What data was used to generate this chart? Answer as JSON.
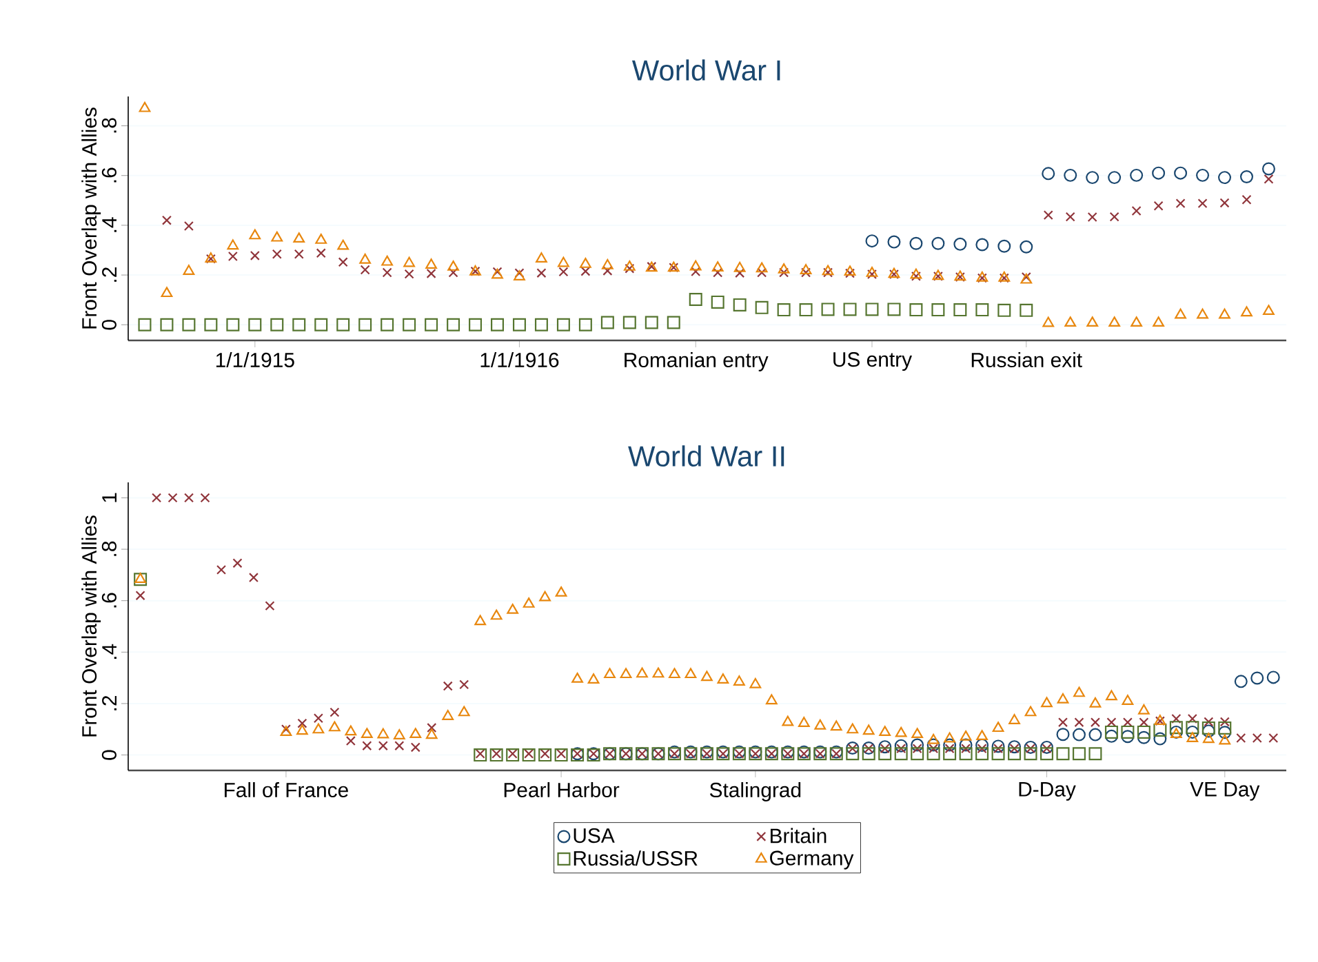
{
  "chart_data": [
    {
      "type": "scatter",
      "title": "World War I",
      "ylabel": "Front Overlap with Allies",
      "grid": "y",
      "legend": false,
      "categories": [
        null,
        null,
        null,
        null,
        null,
        "1/1/1915",
        null,
        null,
        null,
        null,
        null,
        null,
        null,
        null,
        null,
        null,
        null,
        "1/1/1916",
        null,
        null,
        null,
        null,
        null,
        null,
        null,
        "Romanian entry",
        null,
        null,
        null,
        null,
        null,
        null,
        null,
        "US entry",
        null,
        null,
        null,
        null,
        null,
        null,
        "Russian exit",
        null,
        null,
        null,
        null,
        null,
        null,
        null,
        null,
        null,
        null,
        null
      ],
      "ylim": [
        -0.063,
        0.918
      ],
      "yticks": [
        {
          "value": 0,
          "label": "0"
        },
        {
          "value": 0.2,
          "label": ".2"
        },
        {
          "value": 0.4,
          "label": ".4"
        },
        {
          "value": 0.6,
          "label": ".6"
        },
        {
          "value": 0.8,
          "label": ".8"
        }
      ],
      "series": [
        {
          "color": "#1a476f",
          "marker": "circle",
          "values": [
            null,
            null,
            null,
            null,
            null,
            null,
            null,
            null,
            null,
            null,
            null,
            null,
            null,
            null,
            null,
            null,
            null,
            null,
            null,
            null,
            null,
            null,
            null,
            null,
            null,
            null,
            null,
            null,
            null,
            null,
            null,
            null,
            null,
            0.337,
            0.333,
            0.327,
            0.327,
            0.324,
            0.322,
            0.316,
            0.313,
            0.608,
            0.601,
            0.592,
            0.592,
            0.601,
            0.61,
            0.61,
            0.601,
            0.592,
            0.595,
            0.627
          ]
        },
        {
          "color": "#90353b",
          "marker": "cross",
          "values": [
            null,
            0.42,
            0.397,
            0.265,
            0.275,
            0.278,
            0.284,
            0.284,
            0.288,
            0.252,
            0.221,
            0.21,
            0.204,
            0.206,
            0.21,
            0.215,
            0.213,
            0.208,
            0.208,
            0.213,
            0.215,
            0.217,
            0.226,
            0.234,
            0.23,
            0.214,
            0.21,
            0.208,
            0.21,
            0.21,
            0.21,
            0.21,
            0.207,
            0.203,
            0.203,
            0.195,
            0.195,
            0.192,
            0.188,
            0.188,
            0.192,
            0.441,
            0.434,
            0.433,
            0.434,
            0.458,
            0.478,
            0.488,
            0.488,
            0.49,
            0.503,
            0.586
          ]
        },
        {
          "color": "#55752f",
          "marker": "square",
          "values": [
            0,
            0,
            0,
            0,
            0,
            0,
            0,
            0,
            0,
            0,
            0,
            0,
            0,
            0,
            0,
            0,
            0,
            0,
            0,
            0,
            0,
            0.009,
            0.009,
            0.009,
            0.009,
            0.102,
            0.091,
            0.08,
            0.069,
            0.06,
            0.06,
            0.062,
            0.062,
            0.062,
            0.062,
            0.06,
            0.06,
            0.06,
            0.06,
            0.058,
            0.058,
            null,
            null,
            null,
            null,
            null,
            null,
            null,
            null,
            null,
            null,
            null
          ]
        },
        {
          "color": "#e8870e",
          "marker": "triangle",
          "values": [
            0.87,
            0.126,
            0.215,
            0.265,
            0.317,
            0.358,
            0.349,
            0.345,
            0.34,
            0.316,
            0.26,
            0.252,
            0.247,
            0.24,
            0.232,
            0.213,
            0.2,
            0.193,
            0.265,
            0.247,
            0.243,
            0.238,
            0.232,
            0.228,
            0.228,
            0.233,
            0.229,
            0.227,
            0.225,
            0.221,
            0.218,
            0.214,
            0.212,
            0.207,
            0.203,
            0.2,
            0.195,
            0.192,
            0.188,
            0.188,
            0.18,
            0.006,
            0.007,
            0.007,
            0.007,
            0.007,
            0.007,
            0.039,
            0.039,
            0.039,
            0.048,
            0.054
          ]
        }
      ]
    },
    {
      "type": "scatter",
      "title": "World War II",
      "ylabel": "Front Overlap with Allies",
      "grid": "y",
      "legend": "bottom",
      "categories": [
        null,
        null,
        null,
        null,
        null,
        null,
        null,
        null,
        null,
        "Fall of France",
        null,
        null,
        null,
        null,
        null,
        null,
        null,
        null,
        null,
        null,
        null,
        null,
        null,
        null,
        null,
        null,
        "Pearl Harbor",
        null,
        null,
        null,
        null,
        null,
        null,
        null,
        null,
        null,
        null,
        null,
        "Stalingrad",
        null,
        null,
        null,
        null,
        null,
        null,
        null,
        null,
        null,
        null,
        null,
        null,
        null,
        null,
        null,
        null,
        null,
        "D-Day",
        null,
        null,
        null,
        null,
        null,
        null,
        null,
        null,
        null,
        null,
        "VE Day",
        null,
        null,
        null
      ],
      "ylim": [
        -0.06,
        1.06
      ],
      "yticks": [
        {
          "value": 0,
          "label": "0"
        },
        {
          "value": 0.2,
          "label": ".2"
        },
        {
          "value": 0.4,
          "label": ".4"
        },
        {
          "value": 0.6,
          "label": ".6"
        },
        {
          "value": 0.8,
          "label": ".8"
        },
        {
          "value": 1,
          "label": "1"
        }
      ],
      "series": [
        {
          "name": "USA",
          "color": "#1a476f",
          "marker": "circle",
          "values": [
            null,
            null,
            null,
            null,
            null,
            null,
            null,
            null,
            null,
            null,
            null,
            null,
            null,
            null,
            null,
            null,
            null,
            null,
            null,
            null,
            null,
            null,
            null,
            null,
            null,
            null,
            null,
            0.005,
            0.005,
            0.005,
            0.005,
            0.005,
            0.005,
            0.012,
            0.012,
            0.012,
            0.012,
            0.012,
            0.012,
            0.012,
            0.012,
            0.012,
            0.012,
            0.012,
            0.027,
            0.027,
            0.032,
            0.036,
            0.039,
            0.039,
            0.039,
            0.039,
            0.038,
            0.034,
            0.032,
            0.03,
            0.03,
            0.08,
            0.079,
            0.079,
            0.073,
            0.072,
            0.068,
            0.063,
            0.089,
            0.089,
            0.093,
            0.088,
            0.286,
            0.299,
            0.302
          ]
        },
        {
          "name": "Britain",
          "color": "#90353b",
          "marker": "cross",
          "values": [
            0.62,
            1,
            1,
            1,
            1,
            0.72,
            0.746,
            0.69,
            0.58,
            0.1,
            0.123,
            0.143,
            0.166,
            0.055,
            0.036,
            0.036,
            0.036,
            0.03,
            0.106,
            0.268,
            0.274,
            0.005,
            0.005,
            0.005,
            0.005,
            0.005,
            0.005,
            0.005,
            0.005,
            0.005,
            0.005,
            0.005,
            0.005,
            0.005,
            0.005,
            0.005,
            0.005,
            0.005,
            0.005,
            0.005,
            0.005,
            0.005,
            0.005,
            0.005,
            0.025,
            0.025,
            0.025,
            0.025,
            0.025,
            0.025,
            0.025,
            0.025,
            0.025,
            0.025,
            0.025,
            0.025,
            0.025,
            0.127,
            0.127,
            0.127,
            0.127,
            0.127,
            0.127,
            0.132,
            0.141,
            0.141,
            0.129,
            0.129,
            0.066,
            0.066,
            0.066
          ]
        },
        {
          "name": "Russia/USSR",
          "color": "#55752f",
          "marker": "square",
          "values": [
            0.683,
            null,
            null,
            null,
            null,
            null,
            null,
            null,
            null,
            null,
            null,
            null,
            null,
            null,
            null,
            null,
            null,
            null,
            null,
            null,
            null,
            0,
            0,
            0,
            0,
            0,
            0,
            0,
            0,
            0.005,
            0.005,
            0.005,
            0.005,
            0.005,
            0.005,
            0.005,
            0.005,
            0.005,
            0.005,
            0.005,
            0.005,
            0.005,
            0.005,
            0.005,
            0.005,
            0.005,
            0.005,
            0.005,
            0.005,
            0.005,
            0.005,
            0.005,
            0.005,
            0.005,
            0.005,
            0.005,
            0.005,
            0.005,
            0.005,
            0.005,
            0.089,
            0.089,
            0.089,
            0.097,
            0.107,
            0.107,
            0.105,
            0.105,
            null,
            null,
            null
          ]
        },
        {
          "name": "Germany",
          "color": "#e8870e",
          "marker": "triangle",
          "values": [
            0.683,
            null,
            null,
            null,
            null,
            null,
            null,
            null,
            null,
            0.088,
            0.093,
            0.098,
            0.106,
            0.09,
            0.08,
            0.079,
            0.075,
            0.08,
            0.077,
            0.15,
            0.165,
            0.519,
            0.54,
            0.563,
            0.587,
            0.612,
            0.63,
            0.295,
            0.292,
            0.313,
            0.313,
            0.315,
            0.315,
            0.313,
            0.313,
            0.302,
            0.292,
            0.284,
            0.274,
            0.211,
            0.127,
            0.123,
            0.113,
            0.109,
            0.098,
            0.093,
            0.088,
            0.084,
            0.08,
            0.057,
            0.063,
            0.07,
            0.072,
            0.104,
            0.134,
            0.165,
            0.2,
            0.215,
            0.24,
            0.199,
            0.227,
            0.209,
            0.172,
            0.131,
            0.08,
            0.064,
            0.061,
            0.055,
            null,
            null,
            null
          ]
        }
      ]
    }
  ]
}
